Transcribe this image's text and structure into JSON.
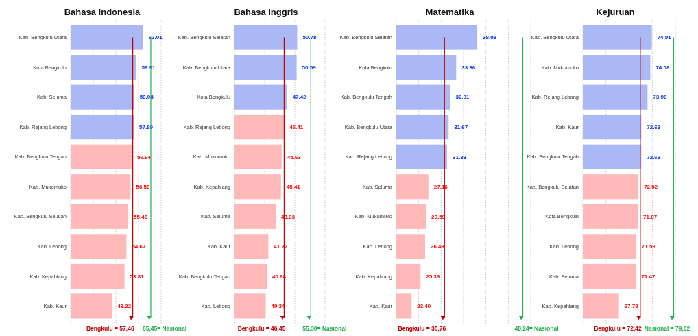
{
  "chart_data": [
    {
      "type": "bar",
      "orientation": "horizontal",
      "title": "Bahasa Indonesia",
      "categories": [
        "Kab. Bengkulu Utara",
        "Kota Bengkulu",
        "Kab. Seluma",
        "Kab. Rejang Lebong",
        "Kab. Bengkulu Tengah",
        "Kab. Mukomuko",
        "Kab. Bengkulu Selatan",
        "Kab. Lebong",
        "Kab. Kepahiang",
        "Kab. Kaur"
      ],
      "values": [
        62.01,
        58.91,
        58.08,
        57.89,
        56.94,
        56.5,
        55.48,
        54.67,
        53.81,
        48.22
      ],
      "value_labels": [
        "62.01",
        "58.91",
        "58.08",
        "57.89",
        "56.94",
        "56.50",
        "55.48",
        "54.67",
        "53.81",
        "48.22"
      ],
      "colors": [
        "#aab8f5",
        "#aab8f5",
        "#aab8f5",
        "#aab8f5",
        "#ffb9b9",
        "#ffb9b9",
        "#ffb9b9",
        "#ffb9b9",
        "#ffb9b9",
        "#ffb9b9"
      ],
      "xlim": [
        30,
        70
      ],
      "xticks": [
        30,
        40,
        50,
        60,
        70
      ],
      "grid": "x",
      "tick_labels": "y",
      "ref_lines": [
        {
          "axis": "x",
          "value": 57.46,
          "label": "Bengkulu = 57,46",
          "color": "#c00000"
        },
        {
          "axis": "x",
          "value": 65.45,
          "label": "65,45= Nasional",
          "color": "#22b14c"
        }
      ]
    },
    {
      "type": "bar",
      "orientation": "horizontal",
      "title": "Bahasa Inggris",
      "categories": [
        "Kab. Bengkulu Selatan",
        "Kab. Bengkulu Utara",
        "Kota Bengkulu",
        "Kab. Rejang Lebong",
        "Kab. Mukomuko",
        "Kab. Kepahiang",
        "Kab. Seluma",
        "Kab. Kaur",
        "Kab. Bengkulu Tengah",
        "Kab. Lebong"
      ],
      "values": [
        50.78,
        50.59,
        47.42,
        46.41,
        45.63,
        45.41,
        43.63,
        41.22,
        40.68,
        40.34
      ],
      "value_labels": [
        "50.78",
        "50.59",
        "47.42",
        "46.41",
        "45.63",
        "45.41",
        "43.63",
        "41.22",
        "40.68",
        "40.34"
      ],
      "colors": [
        "#aab8f5",
        "#aab8f5",
        "#aab8f5",
        "#ffb9b9",
        "#ffb9b9",
        "#ffb9b9",
        "#ffb9b9",
        "#ffb9b9",
        "#ffb9b9",
        "#ffb9b9"
      ],
      "xlim": [
        30,
        60
      ],
      "xticks": [
        30,
        40,
        50,
        60
      ],
      "grid": "x",
      "tick_labels": "y",
      "ref_lines": [
        {
          "axis": "x",
          "value": 46.45,
          "label": "Bengkulu = 46,45",
          "color": "#c00000"
        },
        {
          "axis": "x",
          "value": 55.3,
          "label": "55,30= Nasional",
          "color": "#22b14c"
        }
      ]
    },
    {
      "type": "bar",
      "orientation": "horizontal",
      "title": "Matematika",
      "categories": [
        "Kab. Bengkulu Selatan",
        "Kota Bengkulu",
        "Kab. Bengkulu Tengah",
        "Kab. Bengkulu Utara",
        "Kab. Rejang Lebong",
        "Kab. Seluma",
        "Kab. Mukomuko",
        "Kab. Lebong",
        "Kab. Kepahiang",
        "Kab. Kaur"
      ],
      "values": [
        38.08,
        33.36,
        32.01,
        31.67,
        31.33,
        27.16,
        26.59,
        26.43,
        25.39,
        23.4
      ],
      "value_labels": [
        "38.08",
        "33.36",
        "32.01",
        "31.67",
        "31.33",
        "27.16",
        "26.59",
        "26.43",
        "25.39",
        "23.40"
      ],
      "colors": [
        "#aab8f5",
        "#aab8f5",
        "#aab8f5",
        "#aab8f5",
        "#aab8f5",
        "#ffb9b9",
        "#ffb9b9",
        "#ffb9b9",
        "#ffb9b9",
        "#ffb9b9"
      ],
      "xlim": [
        20,
        50
      ],
      "xticks": [
        20,
        25,
        30,
        35,
        40,
        45,
        50
      ],
      "grid": "x",
      "tick_labels": "y",
      "ref_lines": [
        {
          "axis": "x",
          "value": 30.76,
          "label": "Bengkulu = 30,76",
          "color": "#c00000"
        },
        {
          "axis": "x",
          "value": 48.24,
          "label": "48,24= Nasional",
          "color": "#22b14c"
        }
      ]
    },
    {
      "type": "bar",
      "orientation": "horizontal",
      "title": "Kejuruan",
      "categories": [
        "Kab. Bengkulu Utara",
        "Kab. Mukomuko",
        "Kab. Rejang Lebong",
        "Kab. Kaur",
        "Kab. Bengkulu Tengah",
        "Kab. Bengkulu Selatan",
        "Kota Bengkulu",
        "Kab. Lebong",
        "Kab. Seluma",
        "Kab. Kepahiang"
      ],
      "values": [
        74.91,
        74.58,
        73.98,
        72.63,
        72.63,
        72.02,
        71.87,
        71.53,
        71.47,
        67.79
      ],
      "value_labels": [
        "74.91",
        "74.58",
        "73.98",
        "72.63",
        "72.63",
        "72.02",
        "71.87",
        "71.53",
        "71.47",
        "67.79"
      ],
      "colors": [
        "#aab8f5",
        "#aab8f5",
        "#aab8f5",
        "#aab8f5",
        "#aab8f5",
        "#ffb9b9",
        "#ffb9b9",
        "#ffb9b9",
        "#ffb9b9",
        "#ffb9b9"
      ],
      "xlim": [
        60,
        80
      ],
      "xticks": [
        60,
        65,
        70,
        75,
        80
      ],
      "grid": "x",
      "tick_labels": "y",
      "ref_lines": [
        {
          "axis": "x",
          "value": 72.42,
          "label": "Bengkulu = 72,42",
          "color": "#c00000"
        },
        {
          "axis": "x",
          "value": 79.62,
          "label": "Nasional = 79,62",
          "color": "#22b14c"
        }
      ]
    }
  ]
}
